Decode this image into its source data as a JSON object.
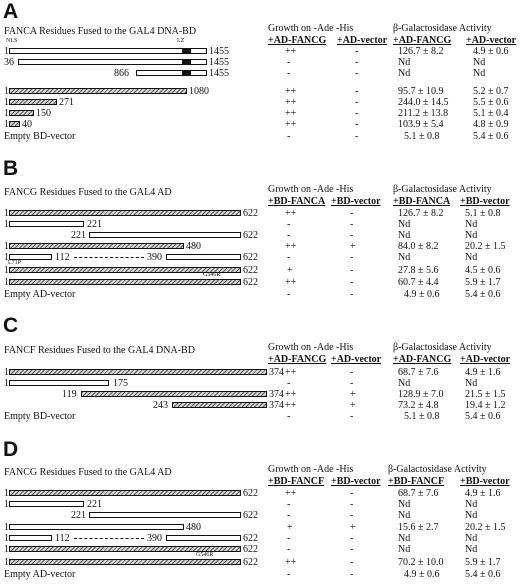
{
  "panels": [
    {
      "label": "A",
      "title": "FANCA Residues Fused to the GAL4 DNA-BD",
      "growth_title": "Growth on -Ade -His",
      "growth_cols": [
        "+AD-FANCG",
        "+AD-vector"
      ],
      "beta_title": "β-Galactosidase Activity",
      "beta_cols": [
        "+AD-FANCG",
        "+AD-vector"
      ],
      "markers": [
        "NLS",
        "LZ"
      ],
      "rows": [
        {
          "start": "1",
          "end": "1455",
          "g1": "++",
          "g2": "-",
          "b1": "126.7 ± 8.2",
          "b2": "4.9 ± 0.6"
        },
        {
          "start": "36",
          "end": "1455",
          "g1": "-",
          "g2": "-",
          "b1": "Nd",
          "b2": "Nd"
        },
        {
          "start": "866",
          "end": "1455",
          "g1": "-",
          "g2": "-",
          "b1": "Nd",
          "b2": "Nd"
        },
        {
          "start": "1",
          "end": "1080",
          "g1": "++",
          "g2": "-",
          "b1": "95.7 ± 10.9",
          "b2": "5.2 ± 0.7"
        },
        {
          "start": "1",
          "end": "271",
          "g1": "++",
          "g2": "-",
          "b1": "244.0 ± 14.5",
          "b2": "5.5 ± 0.6"
        },
        {
          "start": "1",
          "end": "150",
          "g1": "++",
          "g2": "-",
          "b1": "211.2 ± 13.8",
          "b2": "5.1 ± 0.4"
        },
        {
          "start": "1",
          "end": "40",
          "g1": "++",
          "g2": "-",
          "b1": "103.9 ± 5.4",
          "b2": "4.8 ± 0.9"
        }
      ],
      "empty": {
        "label": "Empty BD-vector",
        "g1": "-",
        "g2": "-",
        "b1": "5.1 ± 0.8",
        "b2": "5.4 ± 0.6"
      }
    },
    {
      "label": "B",
      "title": "FANCG Residues Fused to the GAL4 AD",
      "growth_title": "Growth on -Ade -His",
      "growth_cols": [
        "+BD-FANCA",
        "+BD-vector"
      ],
      "beta_title": "β-Galactosidase Activity",
      "beta_cols": [
        "+BD-FANCA",
        "+BD-vector"
      ],
      "rows": [
        {
          "start": "1",
          "end": "622",
          "g1": "++",
          "g2": "-",
          "b1": "126.7 ± 8.2",
          "b2": "5.1 ± 0.8"
        },
        {
          "start": "1",
          "end": "221",
          "g1": "-",
          "g2": "-",
          "b1": "Nd",
          "b2": "Nd"
        },
        {
          "start": "221",
          "end": "622",
          "g1": "-",
          "g2": "-",
          "b1": "Nd",
          "b2": "Nd"
        },
        {
          "start": "1",
          "end": "480",
          "g1": "++",
          "g2": "+",
          "b1": "84.0 ± 8.2",
          "b2": "20.2 ± 1.5"
        },
        {
          "start": "1",
          "mid1": "112",
          "mid2": "390",
          "end": "622",
          "g1": "-",
          "g2": "-",
          "b1": "Nd",
          "b2": "Nd"
        },
        {
          "start": "1",
          "end": "622",
          "mut": "L71P",
          "g1": "+",
          "g2": "-",
          "b1": "27.8 ± 5.6",
          "b2": "4.5 ± 0.6"
        },
        {
          "start": "1",
          "end": "622",
          "mut": "G546R",
          "g1": "++",
          "g2": "-",
          "b1": "60.7 ± 4.4",
          "b2": "5.9 ± 1.7"
        }
      ],
      "empty": {
        "label": "Empty AD-vector",
        "g1": "-",
        "g2": "-",
        "b1": "4.9 ± 0.6",
        "b2": "5.4 ± 0.6"
      }
    },
    {
      "label": "C",
      "title": "FANCF Residues Fused to the GAL4 DNA-BD",
      "growth_title": "Growth on -Ade -His",
      "growth_cols": [
        "+AD-FANCG",
        "+AD-vector"
      ],
      "beta_title": "β-Galactosidase Activity",
      "beta_cols": [
        "+AD-FANCG",
        "+AD-vector"
      ],
      "rows": [
        {
          "start": "1",
          "end": "374",
          "g1": "++",
          "g2": "-",
          "b1": "68.7 ± 7.6",
          "b2": "4.9 ± 1.6"
        },
        {
          "start": "1",
          "end": "175",
          "g1": "-",
          "g2": "-",
          "b1": "Nd",
          "b2": "Nd"
        },
        {
          "start": "119",
          "end": "374",
          "g1": "++",
          "g2": "+",
          "b1": "128.9 ± 7.0",
          "b2": "21.5 ± 1.5"
        },
        {
          "start": "243",
          "end": "374",
          "g1": "++",
          "g2": "+",
          "b1": "73.2 ± 4.8",
          "b2": "19.4 ± 1.2"
        }
      ],
      "empty": {
        "label": "Empty BD-vector",
        "g1": "-",
        "g2": "-",
        "b1": "5.1 ± 0.8",
        "b2": "5.4 ± 0.6"
      }
    },
    {
      "label": "D",
      "title": "FANCG Residues Fused to the GAL4 AD",
      "growth_title": "Growth on -Ade -His",
      "growth_cols": [
        "+BD-FANCF",
        "+BD-vector"
      ],
      "beta_title": "β-Galactosidase Activity",
      "beta_cols": [
        "+BD-FANCF",
        "+BD-vector"
      ],
      "rows": [
        {
          "start": "1",
          "end": "622",
          "g1": "++",
          "g2": "-",
          "b1": "68.7 ± 7.6",
          "b2": "4.9 ± 1.6"
        },
        {
          "start": "1",
          "end": "221",
          "g1": "-",
          "g2": "-",
          "b1": "Nd",
          "b2": "Nd"
        },
        {
          "start": "221",
          "end": "622",
          "g1": "-",
          "g2": "-",
          "b1": "Nd",
          "b2": "Nd"
        },
        {
          "start": "1",
          "end": "480",
          "g1": "+",
          "g2": "+",
          "b1": "15.6 ± 2.7",
          "b2": "20.2 ± 1.5"
        },
        {
          "start": "1",
          "mid1": "112",
          "mid2": "390",
          "end": "622",
          "g1": "-",
          "g2": "-",
          "b1": "Nd",
          "b2": "Nd"
        },
        {
          "start": "1",
          "end": "622",
          "mut": "L71P",
          "g1": "-",
          "g2": "-",
          "b1": "Nd",
          "b2": "Nd"
        },
        {
          "start": "1",
          "end": "622",
          "mut": "G546R",
          "g1": "++",
          "g2": "-",
          "b1": "70.2 ± 10.0",
          "b2": "5.9 ± 1.7"
        }
      ],
      "empty": {
        "label": "Empty AD-vector",
        "g1": "-",
        "g2": "-",
        "b1": "4.9 ± 0.6",
        "b2": "5.4 ± 0.6"
      }
    }
  ]
}
